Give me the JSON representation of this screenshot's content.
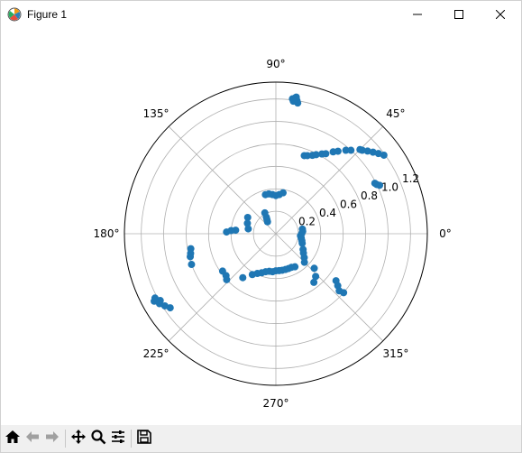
{
  "window": {
    "title": "Figure 1",
    "controls": [
      "minimize",
      "maximize",
      "close"
    ]
  },
  "toolbar": {
    "buttons": [
      "home-icon",
      "back-icon",
      "forward-icon",
      "pan-icon",
      "zoom-icon",
      "configure-subplots-icon",
      "save-icon"
    ]
  },
  "colors": {
    "marker": "#1f77b4",
    "grid": "#b0b0b0",
    "toolbar_bg": "#f0f0f0"
  },
  "chart_data": {
    "type": "scatter",
    "projection": "polar",
    "theta_unit": "degrees",
    "angular_ticks": [
      "0°",
      "45°",
      "90°",
      "135°",
      "180°",
      "225°",
      "270°",
      "315°"
    ],
    "radial_ticks": [
      "0.2",
      "0.4",
      "0.6",
      "0.8",
      "1.0",
      "1.2"
    ],
    "rlim": [
      0,
      1.35
    ],
    "grid": true,
    "series": [
      {
        "marker": "circle",
        "points": [
          {
            "theta": 81,
            "r": 1.2
          },
          {
            "theta": 82,
            "r": 1.22
          },
          {
            "theta": 83,
            "r": 1.21
          },
          {
            "theta": 81.5,
            "r": 1.23
          },
          {
            "theta": 80.5,
            "r": 1.18
          },
          {
            "theta": 82.5,
            "r": 1.19
          },
          {
            "theta": 70,
            "r": 0.74
          },
          {
            "theta": 65,
            "r": 0.77
          },
          {
            "theta": 60,
            "r": 0.82
          },
          {
            "theta": 55,
            "r": 0.89
          },
          {
            "theta": 50,
            "r": 0.97
          },
          {
            "theta": 45,
            "r": 1.06
          },
          {
            "theta": 42,
            "r": 1.1
          },
          {
            "theta": 40,
            "r": 1.13
          },
          {
            "theta": 38,
            "r": 1.16
          },
          {
            "theta": 36,
            "r": 1.19
          },
          {
            "theta": 68,
            "r": 0.75
          },
          {
            "theta": 63,
            "r": 0.79
          },
          {
            "theta": 58,
            "r": 0.84
          },
          {
            "theta": 53,
            "r": 0.92
          },
          {
            "theta": 48,
            "r": 1.0
          },
          {
            "theta": 44,
            "r": 1.07
          },
          {
            "theta": 26,
            "r": 1.0
          },
          {
            "theta": 25,
            "r": 1.02
          },
          {
            "theta": 27,
            "r": 0.99
          },
          {
            "theta": 105,
            "r": 0.36
          },
          {
            "theta": 100,
            "r": 0.36
          },
          {
            "theta": 95,
            "r": 0.35
          },
          {
            "theta": 90,
            "r": 0.34
          },
          {
            "theta": 85,
            "r": 0.35
          },
          {
            "theta": 80,
            "r": 0.37
          },
          {
            "theta": 125,
            "r": 0.13
          },
          {
            "theta": 120,
            "r": 0.17
          },
          {
            "theta": 118,
            "r": 0.21
          },
          {
            "theta": 122,
            "r": 0.15
          },
          {
            "theta": 150,
            "r": 0.29
          },
          {
            "theta": 160,
            "r": 0.27
          },
          {
            "theta": 170,
            "r": 0.25
          },
          {
            "theta": 175,
            "r": 0.36
          },
          {
            "theta": 178,
            "r": 0.44
          },
          {
            "theta": 176,
            "r": 0.4
          },
          {
            "theta": -5,
            "r": 0.22
          },
          {
            "theta": -10,
            "r": 0.23
          },
          {
            "theta": -20,
            "r": 0.25
          },
          {
            "theta": -30,
            "r": 0.28
          },
          {
            "theta": -40,
            "r": 0.33
          },
          {
            "theta": -45,
            "r": 0.36
          },
          {
            "theta": -15,
            "r": 0.24
          },
          {
            "theta": -35,
            "r": 0.3
          },
          {
            "theta": -42,
            "r": 0.46
          },
          {
            "theta": -47,
            "r": 0.52
          },
          {
            "theta": -52,
            "r": 0.55
          },
          {
            "theta": 10,
            "r": 0.24
          },
          {
            "theta": 5,
            "r": 0.24
          },
          {
            "theta": 0,
            "r": 0.23
          },
          {
            "theta": -38,
            "r": 0.68
          },
          {
            "theta": -40,
            "r": 0.72
          },
          {
            "theta": -42,
            "r": 0.76
          },
          {
            "theta": -41,
            "r": 0.8
          },
          {
            "theta": -60,
            "r": 0.34
          },
          {
            "theta": -70,
            "r": 0.33
          },
          {
            "theta": -80,
            "r": 0.33
          },
          {
            "theta": -90,
            "r": 0.33
          },
          {
            "theta": -100,
            "r": 0.34
          },
          {
            "theta": -110,
            "r": 0.37
          },
          {
            "theta": -120,
            "r": 0.42
          },
          {
            "theta": -127,
            "r": 0.49
          },
          {
            "theta": -65,
            "r": 0.33
          },
          {
            "theta": -75,
            "r": 0.33
          },
          {
            "theta": -85,
            "r": 0.33
          },
          {
            "theta": -95,
            "r": 0.34
          },
          {
            "theta": -105,
            "r": 0.35
          },
          {
            "theta": -115,
            "r": 0.39
          },
          {
            "theta": -140,
            "r": 0.58
          },
          {
            "theta": -145,
            "r": 0.58
          },
          {
            "theta": -137,
            "r": 0.6
          },
          {
            "theta": -160,
            "r": 0.8
          },
          {
            "theta": -165,
            "r": 0.79
          },
          {
            "theta": -170,
            "r": 0.77
          },
          {
            "theta": -167,
            "r": 0.78
          },
          {
            "theta": -145,
            "r": 1.15
          },
          {
            "theta": -147,
            "r": 1.18
          },
          {
            "theta": -149,
            "r": 1.21
          },
          {
            "theta": -151,
            "r": 1.24
          },
          {
            "theta": -152,
            "r": 1.22
          },
          {
            "theta": -150,
            "r": 1.19
          }
        ]
      }
    ]
  }
}
